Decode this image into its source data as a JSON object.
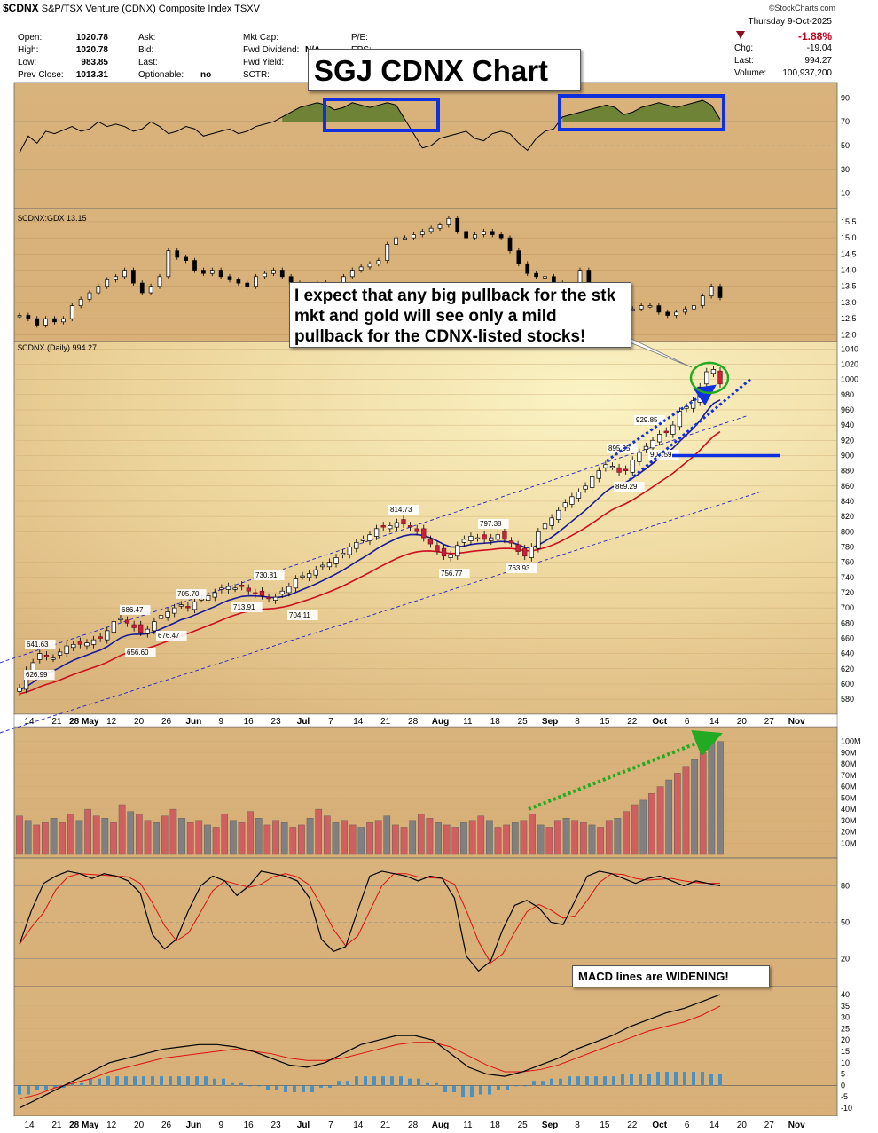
{
  "header": {
    "symbol": "$CDNX",
    "name": "S&P/TSX Venture (CDNX) Composite Index",
    "exchange": "TSXV",
    "watermark": "©StockCharts.com",
    "quote_labels": [
      "Open:",
      "High:",
      "Low:",
      "Prev Close:"
    ],
    "quote_values": [
      "1020.78",
      "1020.78",
      "983.85",
      "1013.31"
    ],
    "col2_labels": [
      "Ask:",
      "Bid:",
      "Last:",
      "Optionable:"
    ],
    "optionable": "no",
    "col3_labels": [
      "Mkt Cap:",
      "Fwd Dividend:",
      "Fwd Yield:",
      "SCTR:"
    ],
    "col3_partial": "N/A",
    "col4_labels": [
      "P/E:",
      "EPS:"
    ],
    "date": "Thursday  9-Oct-2025",
    "change_pct": "-1.88%",
    "chg_label": "Chg:",
    "chg_value": "-19.04",
    "last_label": "Last:",
    "last_value": "994.27",
    "volume_label": "Volume:",
    "volume_value": "100,937,200"
  },
  "annotations": {
    "title_box": "SGJ CDNX Chart",
    "callout_text": "I expect that any big pullback for the stk mkt and gold will see only a mild pullback for the CDNX-listed stocks!",
    "macd_note": "MACD lines are WIDENING!"
  },
  "colors": {
    "panel_bg": "#d8b078",
    "up_candle": "#ffffff",
    "down_candle": "#cc2038",
    "ema_fast": "#1a1a9a",
    "ema_slow": "#cc1020",
    "channel": "#2222cc",
    "annotation_blue": "#1030e0",
    "annotation_green": "#22aa22",
    "volume_up": "#808080",
    "volume_down": "#d06060",
    "rsi_fill": "#5a7a2a",
    "macd_hist": "#4a90c0"
  },
  "chart_data": [
    {
      "type": "line",
      "panel": "rsi",
      "yticks": [
        10,
        30,
        50,
        70,
        90
      ],
      "ylim": [
        0,
        100
      ],
      "values": [
        44,
        58,
        52,
        62,
        60,
        63,
        66,
        62,
        64,
        70,
        66,
        68,
        66,
        62,
        64,
        70,
        66,
        60,
        62,
        66,
        64,
        58,
        60,
        62,
        64,
        60,
        62,
        66,
        68,
        70,
        74,
        78,
        82,
        84,
        86,
        84,
        80,
        82,
        86,
        84,
        82,
        84,
        86,
        84,
        72,
        60,
        48,
        50,
        56,
        58,
        60,
        62,
        56,
        54,
        60,
        62,
        60,
        52,
        46,
        56,
        62,
        64,
        74,
        76,
        78,
        80,
        82,
        84,
        82,
        76,
        78,
        82,
        84,
        86,
        84,
        82,
        84,
        86,
        88,
        84,
        72
      ]
    },
    {
      "type": "line",
      "panel": "ratio",
      "title": "$CDNX:GDX 13.15",
      "yticks": [
        12.0,
        12.5,
        13.0,
        13.5,
        14.0,
        14.5,
        15.0,
        15.5
      ],
      "ylim": [
        11.9,
        15.8
      ],
      "values": [
        12.6,
        12.5,
        12.3,
        12.5,
        12.4,
        12.5,
        12.9,
        13.1,
        13.3,
        13.5,
        13.7,
        13.8,
        14.0,
        13.6,
        13.3,
        13.5,
        13.8,
        14.6,
        14.4,
        14.3,
        14.0,
        13.9,
        14.0,
        13.8,
        13.7,
        13.6,
        13.5,
        13.8,
        13.9,
        14.0,
        13.8,
        13.6,
        13.5,
        13.5,
        13.6,
        13.2,
        13.4,
        13.8,
        14.0,
        14.1,
        14.2,
        14.3,
        14.8,
        15.0,
        15.0,
        15.1,
        15.2,
        15.3,
        15.4,
        15.6,
        15.2,
        15.0,
        15.1,
        15.2,
        15.1,
        15.0,
        14.6,
        14.2,
        13.9,
        13.8,
        13.8,
        13.6,
        13.5,
        13.3,
        14.0,
        13.2,
        13.0,
        12.8,
        12.9,
        12.8,
        12.8,
        12.9,
        12.9,
        12.7,
        12.6,
        12.7,
        12.8,
        12.9,
        13.2,
        13.5,
        13.15
      ]
    },
    {
      "type": "line",
      "panel": "price",
      "title": "$CDNX (Daily) 994.27",
      "x_labels": [
        "14",
        "21",
        "28 May",
        "12",
        "20",
        "26",
        "Jun",
        "9",
        "16",
        "23",
        "Jul",
        "7",
        "14",
        "21",
        "28",
        "Aug",
        "11",
        "18",
        "25",
        "Sep",
        "8",
        "15",
        "22",
        "Oct",
        "6",
        "14",
        "20",
        "27",
        "Nov"
      ],
      "yticks": [
        580,
        600,
        620,
        640,
        660,
        680,
        700,
        720,
        740,
        760,
        780,
        800,
        820,
        840,
        860,
        880,
        900,
        920,
        940,
        960,
        980,
        1000,
        1020,
        1040
      ],
      "ylim": [
        565,
        1045
      ],
      "close": [
        595,
        618,
        628,
        640,
        636,
        634,
        642,
        650,
        652,
        652,
        654,
        658,
        660,
        670,
        682,
        686,
        680,
        674,
        668,
        672,
        682,
        690,
        695,
        700,
        704,
        700,
        708,
        712,
        716,
        720,
        726,
        728,
        726,
        728,
        722,
        718,
        716,
        712,
        714,
        722,
        728,
        738,
        742,
        745,
        750,
        756,
        760,
        766,
        772,
        780,
        786,
        790,
        796,
        804,
        806,
        808,
        812,
        810,
        806,
        800,
        792,
        784,
        774,
        768,
        770,
        782,
        790,
        794,
        792,
        790,
        792,
        796,
        790,
        785,
        774,
        768,
        780,
        800,
        810,
        818,
        828,
        838,
        846,
        852,
        860,
        872,
        880,
        888,
        886,
        878,
        880,
        894,
        904,
        912,
        920,
        928,
        930,
        940,
        958,
        964,
        972,
        990,
        1010,
        1013,
        994
      ],
      "ema_fast_end": 975,
      "ema_slow_end": 930,
      "price_labels": [
        "641.63",
        "626.99",
        "686.47",
        "656.60",
        "705.70",
        "676.47",
        "730.81",
        "713.91",
        "704.11",
        "814.73",
        "797.38",
        "756.77",
        "763.93",
        "895.95",
        "869.29",
        "929.85",
        "907.59"
      ],
      "support_level": 900
    },
    {
      "type": "bar",
      "panel": "volume",
      "yticks": [
        "10M",
        "20M",
        "30M",
        "40M",
        "50M",
        "60M",
        "70M",
        "80M",
        "90M",
        "100M"
      ],
      "ylim": [
        0,
        110
      ],
      "values": [
        34,
        30,
        26,
        28,
        32,
        28,
        36,
        30,
        40,
        34,
        32,
        28,
        44,
        38,
        36,
        30,
        28,
        34,
        40,
        32,
        28,
        30,
        26,
        24,
        36,
        30,
        28,
        38,
        32,
        26,
        30,
        28,
        24,
        26,
        32,
        40,
        34,
        28,
        30,
        26,
        24,
        28,
        30,
        34,
        26,
        24,
        30,
        36,
        32,
        28,
        26,
        24,
        28,
        30,
        34,
        30,
        24,
        26,
        28,
        30,
        36,
        26,
        24,
        30,
        32,
        30,
        28,
        26,
        24,
        30,
        32,
        38,
        44,
        48,
        54,
        60,
        66,
        72,
        78,
        84,
        90,
        100,
        100
      ]
    },
    {
      "type": "line",
      "panel": "stochastic",
      "yticks": [
        20,
        50,
        80
      ],
      "ylim": [
        0,
        100
      ],
      "values": [
        32,
        60,
        82,
        88,
        92,
        90,
        86,
        90,
        88,
        84,
        74,
        40,
        28,
        36,
        60,
        80,
        88,
        84,
        72,
        80,
        92,
        90,
        88,
        84,
        70,
        36,
        26,
        30,
        60,
        88,
        92,
        90,
        88,
        84,
        88,
        86,
        70,
        22,
        10,
        18,
        44,
        64,
        68,
        62,
        50,
        48,
        68,
        88,
        92,
        90,
        86,
        82,
        86,
        88,
        84,
        80,
        84,
        82,
        80
      ]
    },
    {
      "type": "line",
      "panel": "macd",
      "yticks": [
        -10,
        -5,
        0,
        5,
        10,
        15,
        20,
        25,
        30,
        35,
        40
      ],
      "ylim": [
        -12,
        42
      ],
      "macd_line": [
        -10,
        -6,
        -2,
        2,
        6,
        10,
        12,
        14,
        16,
        17,
        18,
        18,
        17,
        15,
        12,
        9,
        8,
        10,
        14,
        18,
        20,
        22,
        22,
        20,
        14,
        8,
        5,
        4,
        6,
        9,
        12,
        16,
        19,
        22,
        26,
        29,
        32,
        34,
        37,
        40
      ],
      "signal_line": [
        -6,
        -4,
        -1,
        1,
        3,
        6,
        8,
        10,
        12,
        13,
        14,
        15,
        16,
        15,
        14,
        12,
        11,
        11,
        12,
        14,
        16,
        18,
        19,
        19,
        17,
        13,
        9,
        6,
        6,
        7,
        9,
        12,
        15,
        18,
        21,
        24,
        26,
        28,
        31,
        35
      ],
      "histogram": [
        -4,
        -2,
        -1,
        1,
        3,
        4,
        4,
        4,
        4,
        4,
        4,
        3,
        1,
        0,
        -2,
        -3,
        -3,
        -1,
        2,
        4,
        4,
        4,
        3,
        1,
        -3,
        -5,
        -4,
        -2,
        0,
        2,
        3,
        4,
        4,
        4,
        5,
        5,
        6,
        6,
        6,
        5
      ]
    }
  ]
}
